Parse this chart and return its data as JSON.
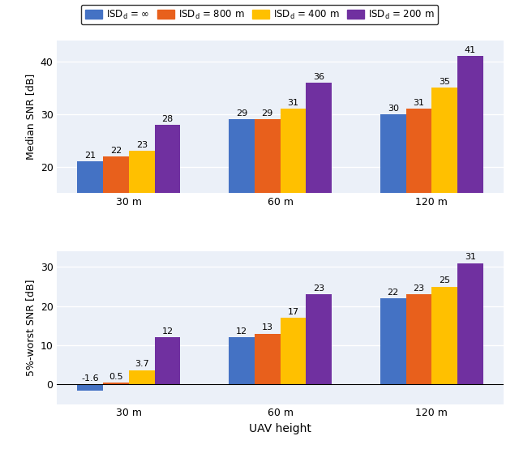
{
  "colors": [
    "#4472C4",
    "#E8601C",
    "#FFC000",
    "#7030A0"
  ],
  "x_labels": [
    "30 m",
    "60 m",
    "120 m"
  ],
  "top_data": {
    "ylabel": "Median SNR [dB]",
    "values": [
      [
        21,
        22,
        23,
        28
      ],
      [
        29,
        29,
        31,
        36
      ],
      [
        30,
        31,
        35,
        41
      ]
    ],
    "ylim": [
      15,
      44
    ],
    "yticks": [
      20,
      30,
      40
    ]
  },
  "bottom_data": {
    "ylabel": "5%-worst SNR [dB]",
    "values": [
      [
        -1.6,
        0.5,
        3.7,
        12
      ],
      [
        12,
        13,
        17,
        23
      ],
      [
        22,
        23,
        25,
        31
      ]
    ],
    "ylim": [
      -5,
      34
    ],
    "yticks": [
      0,
      10,
      20,
      30
    ]
  },
  "xlabel": "UAV height",
  "bar_width": 0.17,
  "background_color": "#EBF0F8",
  "fig_background": "#FFFFFF",
  "grid_color": "#FFFFFF",
  "axis_line_color": "#888888"
}
